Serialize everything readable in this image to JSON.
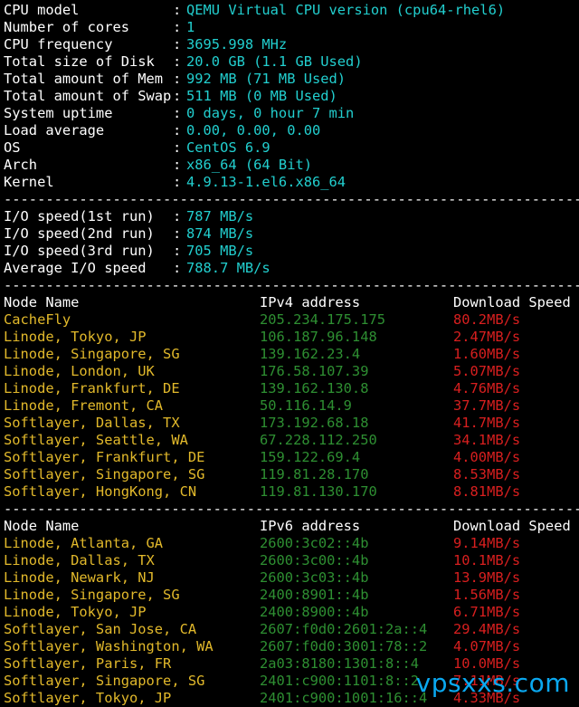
{
  "sysinfo": [
    {
      "label": "CPU model",
      "value": "QEMU Virtual CPU version (cpu64-rhel6)"
    },
    {
      "label": "Number of cores",
      "value": "1"
    },
    {
      "label": "CPU frequency",
      "value": "3695.998 MHz"
    },
    {
      "label": "Total size of Disk",
      "value": "20.0 GB (1.1 GB Used)"
    },
    {
      "label": "Total amount of Mem",
      "value": "992 MB (71 MB Used)"
    },
    {
      "label": "Total amount of Swap",
      "value": "511 MB (0 MB Used)"
    },
    {
      "label": "System uptime",
      "value": "0 days, 0 hour 7 min"
    },
    {
      "label": "Load average",
      "value": "0.00, 0.00, 0.00"
    },
    {
      "label": "OS",
      "value": "CentOS 6.9"
    },
    {
      "label": "Arch",
      "value": "x86_64 (64 Bit)"
    },
    {
      "label": "Kernel",
      "value": "4.9.13-1.el6.x86_64"
    }
  ],
  "separator": "----------------------------------------------------------------------",
  "io": [
    {
      "label": "I/O speed(1st run)",
      "value": "787 MB/s"
    },
    {
      "label": "I/O speed(2nd run)",
      "value": "874 MB/s"
    },
    {
      "label": "I/O speed(3rd run)",
      "value": "705 MB/s"
    },
    {
      "label": "Average I/O speed",
      "value": "788.7 MB/s"
    }
  ],
  "ipv4_header": {
    "node": "Node Name",
    "addr": "IPv4 address",
    "speed": "Download Speed"
  },
  "ipv4": [
    {
      "node": "CacheFly",
      "addr": "205.234.175.175",
      "speed": "80.2MB/s"
    },
    {
      "node": "Linode, Tokyo, JP",
      "addr": "106.187.96.148",
      "speed": "2.47MB/s"
    },
    {
      "node": "Linode, Singapore, SG",
      "addr": "139.162.23.4",
      "speed": "1.60MB/s"
    },
    {
      "node": "Linode, London, UK",
      "addr": "176.58.107.39",
      "speed": "5.07MB/s"
    },
    {
      "node": "Linode, Frankfurt, DE",
      "addr": "139.162.130.8",
      "speed": "4.76MB/s"
    },
    {
      "node": "Linode, Fremont, CA",
      "addr": "50.116.14.9",
      "speed": "37.7MB/s"
    },
    {
      "node": "Softlayer, Dallas, TX",
      "addr": "173.192.68.18",
      "speed": "41.7MB/s"
    },
    {
      "node": "Softlayer, Seattle, WA",
      "addr": "67.228.112.250",
      "speed": "34.1MB/s"
    },
    {
      "node": "Softlayer, Frankfurt, DE",
      "addr": "159.122.69.4",
      "speed": "4.00MB/s"
    },
    {
      "node": "Softlayer, Singapore, SG",
      "addr": "119.81.28.170",
      "speed": "8.53MB/s"
    },
    {
      "node": "Softlayer, HongKong, CN",
      "addr": "119.81.130.170",
      "speed": "8.81MB/s"
    }
  ],
  "ipv6_header": {
    "node": "Node Name",
    "addr": "IPv6 address",
    "speed": "Download Speed"
  },
  "ipv6": [
    {
      "node": "Linode, Atlanta, GA",
      "addr": "2600:3c02::4b",
      "speed": "9.14MB/s"
    },
    {
      "node": "Linode, Dallas, TX",
      "addr": "2600:3c00::4b",
      "speed": "10.1MB/s"
    },
    {
      "node": "Linode, Newark, NJ",
      "addr": "2600:3c03::4b",
      "speed": "13.9MB/s"
    },
    {
      "node": "Linode, Singapore, SG",
      "addr": "2400:8901::4b",
      "speed": "1.56MB/s"
    },
    {
      "node": "Linode, Tokyo, JP",
      "addr": "2400:8900::4b",
      "speed": "6.71MB/s"
    },
    {
      "node": "Softlayer, San Jose, CA",
      "addr": "2607:f0d0:2601:2a::4",
      "speed": "29.4MB/s"
    },
    {
      "node": "Softlayer, Washington, WA",
      "addr": "2607:f0d0:3001:78::2",
      "speed": "4.07MB/s"
    },
    {
      "node": "Softlayer, Paris, FR",
      "addr": "2a03:8180:1301:8::4",
      "speed": "10.0MB/s"
    },
    {
      "node": "Softlayer, Singapore, SG",
      "addr": "2401:c900:1101:8::2",
      "speed": "7.11MB/s"
    },
    {
      "node": "Softlayer, Tokyo, JP",
      "addr": "2401:c900:1001:16::4",
      "speed": "4.33MB/s"
    }
  ],
  "watermark": "vpsxxs.com"
}
